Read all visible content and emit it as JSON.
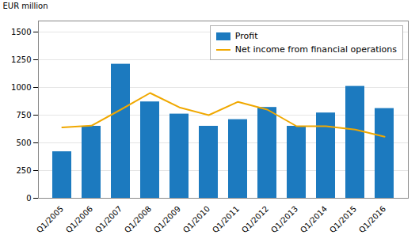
{
  "chart_data": {
    "type": "bar",
    "ylabel": "EUR million",
    "categories": [
      "Q1/2005",
      "Q1/2006",
      "Q1/2007",
      "Q1/2008",
      "Q1/2009",
      "Q1/2010",
      "Q1/2011",
      "Q1/2012",
      "Q1/2013",
      "Q1/2014",
      "Q1/2015",
      "Q1/2016"
    ],
    "series": [
      {
        "name": "Profit",
        "type": "bar",
        "color": "#1c7abf",
        "values": [
          420,
          650,
          1210,
          870,
          760,
          650,
          710,
          820,
          650,
          770,
          1010,
          810
        ]
      },
      {
        "name": "Net income from financial operations",
        "type": "line",
        "color": "#f0a800",
        "values": [
          640,
          655,
          800,
          950,
          820,
          750,
          870,
          800,
          650,
          650,
          620,
          555
        ]
      }
    ],
    "ylim": [
      0,
      1600
    ],
    "yticks": [
      0,
      250,
      500,
      750,
      1000,
      1250,
      1500
    ],
    "grid": true,
    "legend": "upper right"
  }
}
